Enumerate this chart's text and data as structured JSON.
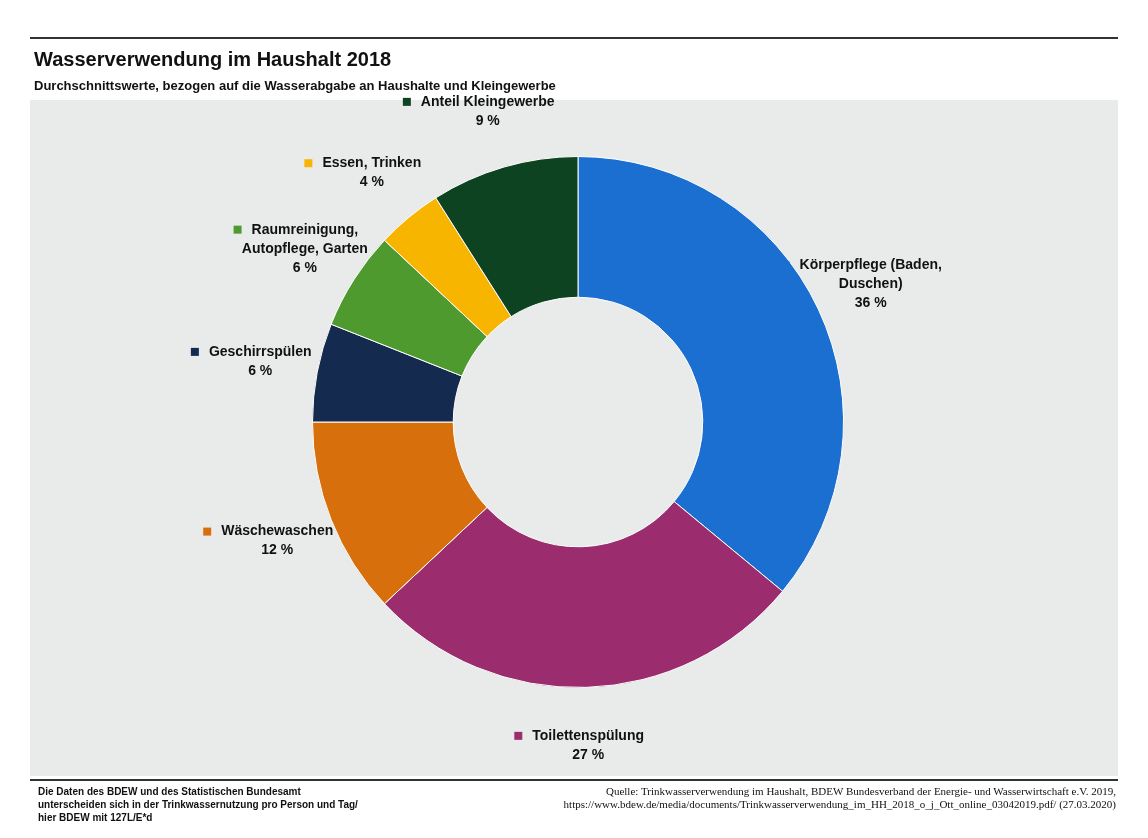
{
  "chart_data": {
    "type": "donut",
    "title": "Wasserverwendung im Haushalt 2018",
    "subtitle": "Durchschnittswerte, bezogen auf die Wasserabgabe an Haushalte und Kleingewerbe",
    "categories": [
      "Körperpflege (Baden, Duschen)",
      "Toilettenspülung",
      "Wäschewaschen",
      "Geschirrspülen",
      "Raumreinigung, Autopflege, Garten",
      "Essen, Trinken",
      "Anteil Kleingewerbe"
    ],
    "values": [
      36,
      27,
      12,
      6,
      6,
      4,
      9
    ],
    "colors": [
      "#1a6fd0",
      "#9b2d6f",
      "#d7700c",
      "#142a4e",
      "#4e9a2e",
      "#f7b500",
      "#0e4322"
    ],
    "value_labels": [
      "36 %",
      "27 %",
      "12 %",
      "6 %",
      "6 %",
      "4 %",
      "9 %"
    ],
    "legend": true,
    "annotations": [
      "Die Daten des BDEW und des Statistischen Bundesamt unterscheiden sich in der Trinkwassernutzung pro Person und Tag/ hier BDEW mit 127L/E*d",
      "Quelle: Trinkwasserverwendung im Haushalt, BDEW Bundesverband der Energie- und Wasserwirtschaft e.V. 2019, https://www.bdew.de/media/documents/Trinkwasserverwendung_im_HH_2018_o_j_Ott_online_03042019.pdf/ (27.03.2020)"
    ]
  }
}
